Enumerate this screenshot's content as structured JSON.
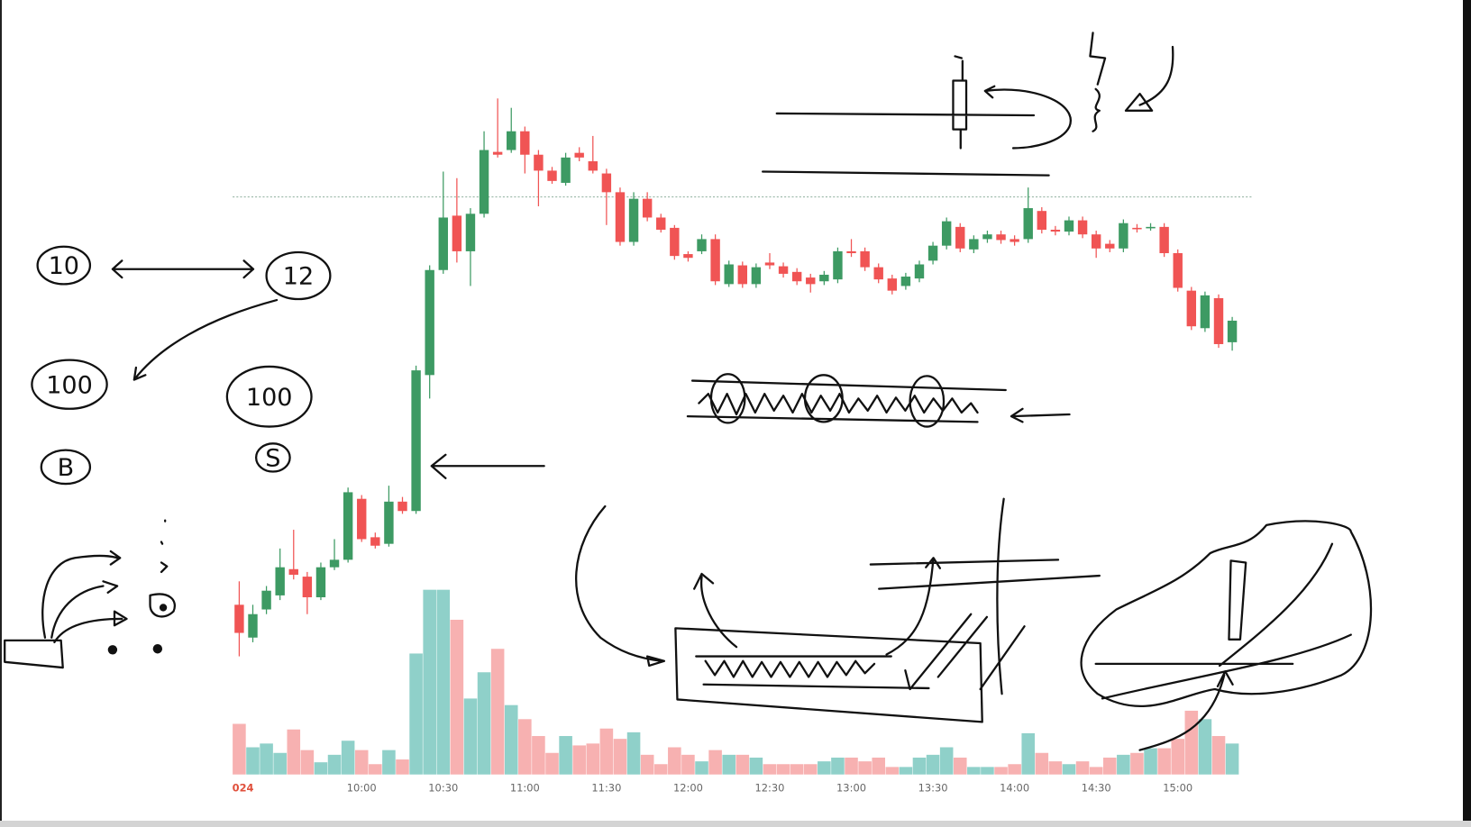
{
  "chart_data": {
    "type": "candlestick",
    "categories": [
      "024",
      null,
      null,
      null,
      null,
      null,
      null,
      null,
      null,
      "10:00",
      null,
      null,
      null,
      null,
      null,
      "10:30",
      null,
      null,
      null,
      null,
      null,
      "11:00",
      null,
      null,
      null,
      null,
      null,
      "11:30",
      null,
      null,
      null,
      null,
      null,
      "12:00",
      null,
      null,
      null,
      null,
      null,
      "12:30",
      null,
      null,
      null,
      null,
      null,
      "13:00",
      null,
      null,
      null,
      null,
      null,
      "13:30",
      null,
      null,
      null,
      null,
      null,
      "14:00",
      null,
      null,
      null,
      null,
      null,
      "14:30",
      null,
      null,
      null,
      null,
      null,
      "15:00",
      null,
      null,
      null,
      null
    ],
    "candles": [
      [
        255,
        280,
        200,
        225
      ],
      [
        220,
        255,
        215,
        245
      ],
      [
        250,
        275,
        245,
        270
      ],
      [
        265,
        315,
        260,
        295
      ],
      [
        293,
        335,
        282,
        287
      ],
      [
        285,
        290,
        245,
        263
      ],
      [
        263,
        300,
        260,
        295
      ],
      [
        295,
        325,
        292,
        303
      ],
      [
        303,
        380,
        300,
        375
      ],
      [
        368,
        372,
        322,
        325
      ],
      [
        327,
        332,
        315,
        318
      ],
      [
        320,
        382,
        317,
        365
      ],
      [
        365,
        370,
        352,
        355
      ],
      [
        355,
        510,
        352,
        505
      ],
      [
        500,
        617,
        475,
        612
      ],
      [
        612,
        717,
        608,
        668
      ],
      [
        670,
        710,
        620,
        632
      ],
      [
        632,
        678,
        595,
        672
      ],
      [
        672,
        760,
        668,
        740
      ],
      [
        738,
        795,
        732,
        735
      ],
      [
        740,
        785,
        737,
        760
      ],
      [
        760,
        765,
        715,
        735
      ],
      [
        735,
        740,
        680,
        718
      ],
      [
        718,
        722,
        704,
        707
      ],
      [
        705,
        737,
        702,
        732
      ],
      [
        737,
        743,
        728,
        732
      ],
      [
        728,
        755,
        715,
        718
      ],
      [
        715,
        720,
        660,
        695
      ],
      [
        695,
        700,
        638,
        642
      ],
      [
        642,
        695,
        638,
        688
      ],
      [
        688,
        695,
        664,
        668
      ],
      [
        668,
        672,
        652,
        655
      ],
      [
        657,
        660,
        623,
        627
      ],
      [
        629,
        632,
        621,
        625
      ],
      [
        632,
        650,
        629,
        645
      ],
      [
        645,
        650,
        596,
        600
      ],
      [
        597,
        622,
        594,
        618
      ],
      [
        617,
        621,
        593,
        597
      ],
      [
        597,
        619,
        593,
        615
      ],
      [
        620,
        630,
        613,
        617
      ],
      [
        616,
        620,
        604,
        608
      ],
      [
        610,
        614,
        596,
        600
      ],
      [
        604,
        608,
        588,
        597
      ],
      [
        600,
        611,
        596,
        607
      ],
      [
        602,
        636,
        598,
        632
      ],
      [
        632,
        645,
        626,
        630
      ],
      [
        632,
        636,
        611,
        615
      ],
      [
        615,
        619,
        598,
        602
      ],
      [
        603,
        607,
        586,
        590
      ],
      [
        595,
        609,
        591,
        605
      ],
      [
        603,
        622,
        599,
        618
      ],
      [
        622,
        642,
        618,
        638
      ],
      [
        638,
        668,
        634,
        664
      ],
      [
        658,
        662,
        631,
        635
      ],
      [
        634,
        649,
        630,
        645
      ],
      [
        645,
        654,
        641,
        650
      ],
      [
        650,
        654,
        640,
        644
      ],
      [
        645,
        649,
        638,
        642
      ],
      [
        645,
        700,
        641,
        678
      ],
      [
        675,
        679,
        651,
        655
      ],
      [
        655,
        659,
        649,
        653
      ],
      [
        653,
        669,
        649,
        665
      ],
      [
        665,
        669,
        646,
        650
      ],
      [
        650,
        654,
        625,
        635
      ],
      [
        640,
        644,
        631,
        635
      ],
      [
        635,
        666,
        631,
        662
      ],
      [
        657,
        661,
        652,
        656
      ],
      [
        657,
        662,
        654,
        658
      ],
      [
        658,
        662,
        626,
        630
      ],
      [
        630,
        634,
        589,
        593
      ],
      [
        590,
        594,
        548,
        552
      ],
      [
        550,
        589,
        546,
        585
      ],
      [
        582,
        586,
        529,
        533
      ],
      [
        535,
        562,
        526,
        558
      ]
    ],
    "volume": [
      54,
      29,
      33,
      23,
      48,
      26,
      13,
      21,
      36,
      26,
      11,
      26,
      16,
      129,
      197,
      197,
      165,
      81,
      109,
      134,
      74,
      59,
      41,
      23,
      41,
      31,
      33,
      49,
      38,
      45,
      21,
      11,
      29,
      21,
      14,
      26,
      21,
      21,
      18,
      11,
      11,
      11,
      11,
      14,
      18,
      18,
      14,
      18,
      8,
      8,
      18,
      21,
      29,
      18,
      8,
      8,
      8,
      11,
      44,
      23,
      14,
      11,
      14,
      8,
      18,
      21,
      23,
      28,
      28,
      38,
      68,
      59,
      41,
      33
    ],
    "ylim": [
      100,
      900
    ],
    "vlim": [
      0,
      200
    ],
    "price_line": 690,
    "up_color": "#3d9a63",
    "down_color": "#f05454",
    "up_volume_color": "#8fd0c9",
    "down_volume_color": "#f7b1b1",
    "annotations": [
      "10",
      "12",
      "100",
      "100",
      "B",
      "S"
    ]
  }
}
